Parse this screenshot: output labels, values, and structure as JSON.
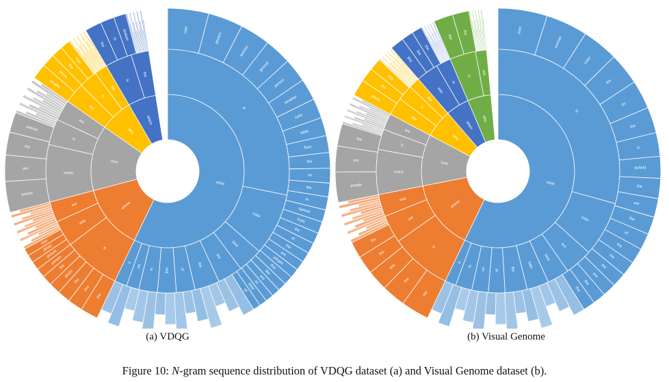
{
  "colors": {
    "what": "#5b9bd5",
    "where": "#ed7d31",
    "how": "#a5a5a5",
    "why": "#ffc000",
    "which": "#4472c4",
    "who": "#70ad47",
    "thin_light": "#d9e6f6"
  },
  "charts": [
    {
      "subcaption": "(a) VDQG",
      "groups": [
        {
          "word": "what",
          "color_key": "what",
          "share": 0.58,
          "second": [
            [
              "is",
              0.34
            ],
            [
              "color",
              0.1
            ],
            [
              "kind",
              0.04
            ],
            [
              "are",
              0.04
            ],
            [
              "the",
              0.04
            ],
            [
              "of",
              0.03
            ],
            [
              "this",
              0.03
            ],
            [
              "in",
              0.03
            ],
            [
              "on",
              0.02
            ],
            [
              "a",
              0.02
            ]
          ],
          "words3": [
            "man",
            "person",
            "woman",
            "ground",
            "person",
            "weather",
            "color",
            "table",
            "floor",
            "the",
            "on",
            "the",
            "in",
            "behind",
            "front",
            "the",
            "of",
            "the",
            "are",
            "people",
            "this",
            "the",
            "are",
            "on",
            "kind",
            "of"
          ]
        },
        {
          "word": "where",
          "color_key": "where",
          "share": 0.14,
          "second": [
            [
              "is",
              0.55
            ],
            [
              "was",
              0.25
            ],
            [
              "are",
              0.2
            ]
          ],
          "words3": [
            "the",
            "this",
            "the",
            "photo",
            "the",
            "person",
            "picture",
            "photo",
            "man"
          ]
        },
        {
          "word": "how",
          "color_key": "how",
          "share": 0.14,
          "second": [
            [
              "many",
              0.55
            ],
            [
              "is",
              0.25
            ],
            [
              "are",
              0.2
            ]
          ],
          "words3": [
            "people",
            "are",
            "the",
            "animal"
          ]
        },
        {
          "word": "why",
          "color_key": "why",
          "share": 0.07,
          "second": [
            [
              "are",
              0.4
            ],
            [
              "is",
              0.35
            ],
            [
              "the",
              0.25
            ]
          ],
          "words3": [
            "people",
            "photo",
            "the",
            "man"
          ]
        },
        {
          "word": "which",
          "color_key": "which",
          "share": 0.06,
          "second": [
            [
              "is",
              0.6
            ],
            [
              "the",
              0.4
            ]
          ],
          "words3": [
            "the",
            "is",
            "bottom"
          ]
        }
      ]
    },
    {
      "subcaption": "(b) Visual Genome",
      "groups": [
        {
          "word": "what",
          "color_key": "what",
          "share": 0.58,
          "second": [
            [
              "is",
              0.4
            ],
            [
              "color",
              0.1
            ],
            [
              "are",
              0.05
            ],
            [
              "kind",
              0.04
            ],
            [
              "type",
              0.04
            ],
            [
              "the",
              0.04
            ],
            [
              "of",
              0.03
            ],
            [
              "on",
              0.03
            ],
            [
              "in",
              0.03
            ],
            [
              "a",
              0.02
            ]
          ],
          "words3": [
            "man",
            "woman",
            "color",
            "the",
            "on",
            "the",
            "in",
            "behind",
            "the",
            "are",
            "the",
            "of",
            "the",
            "the",
            "the",
            "are",
            "the",
            "the"
          ]
        },
        {
          "word": "where",
          "color_key": "where",
          "share": 0.15,
          "second": [
            [
              "is",
              0.55
            ],
            [
              "are",
              0.25
            ],
            [
              "was",
              0.2
            ]
          ],
          "words3": [
            "the",
            "the",
            "this",
            "the",
            "the"
          ]
        },
        {
          "word": "how",
          "color_key": "how",
          "share": 0.11,
          "second": [
            [
              "many",
              0.55
            ],
            [
              "is",
              0.25
            ],
            [
              "are",
              0.2
            ]
          ],
          "words3": [
            "people",
            "are",
            "the"
          ]
        },
        {
          "word": "why",
          "color_key": "why",
          "share": 0.06,
          "second": [
            [
              "are",
              0.4
            ],
            [
              "is",
              0.35
            ],
            [
              "the",
              0.25
            ]
          ],
          "words3": [
            "photo",
            "the",
            "this"
          ]
        },
        {
          "word": "when",
          "color_key": "which",
          "share": 0.05,
          "second": [
            [
              "was",
              0.6
            ],
            [
              "is",
              0.4
            ]
          ],
          "words3": [
            "this",
            "the",
            "the"
          ]
        },
        {
          "word": "who",
          "color_key": "who",
          "share": 0.05,
          "second": [
            [
              "is",
              0.7
            ],
            [
              "are",
              0.3
            ]
          ],
          "words3": [
            "the",
            "the"
          ]
        }
      ]
    }
  ],
  "caption": {
    "prefix": "Figure 10:",
    "n_symbol": "N",
    "text": "-gram sequence distribution of VDQG dataset (a) and Visual Genome dataset (b)."
  }
}
